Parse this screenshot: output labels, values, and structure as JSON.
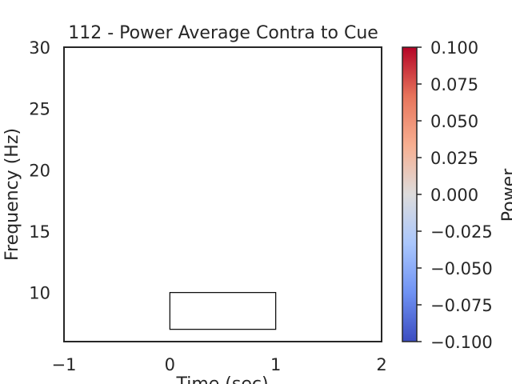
{
  "chart_data": {
    "type": "heatmap",
    "title": "112 - Power Average Contra to Cue",
    "xlabel": "Time (sec)",
    "ylabel": "Frequency (Hz)",
    "xlim": [
      -1,
      2
    ],
    "ylim": [
      6,
      30
    ],
    "x_ticks": [
      -1,
      0,
      1,
      2
    ],
    "x_tick_labels": [
      "−1",
      "0",
      "1",
      "2"
    ],
    "y_ticks": [
      10,
      15,
      20,
      25,
      30
    ],
    "y_tick_labels": [
      "10",
      "15",
      "20",
      "25",
      "30"
    ],
    "grid": false,
    "data_values_visible": false,
    "annotation_box": {
      "x": [
        0,
        1
      ],
      "y": [
        7,
        10
      ]
    },
    "colorbar": {
      "label": "Power",
      "colormap": "coolwarm",
      "range": [
        -0.1,
        0.1
      ],
      "ticks": [
        0.1,
        0.075,
        0.05,
        0.025,
        0,
        -0.025,
        -0.05,
        -0.075,
        -0.1
      ],
      "tick_labels": [
        "0.100",
        "0.075",
        "0.050",
        "0.025",
        "0.000",
        "−0.025",
        "−0.050",
        "−0.075",
        "−0.100"
      ],
      "colors": [
        "#b40426",
        "#e7745b",
        "#f7af91",
        "#dddcdc",
        "#aac7fd",
        "#6f92f3",
        "#3b4cc0"
      ]
    }
  }
}
